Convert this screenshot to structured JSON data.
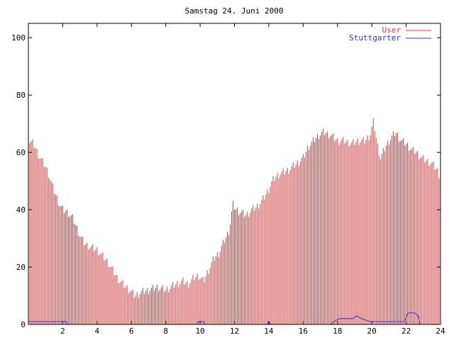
{
  "chart_data": {
    "type": "bar",
    "title": "Samstag 24. Juni 2000",
    "xlabel": "",
    "ylabel": "",
    "xlim": [
      0,
      24
    ],
    "ylim": [
      0,
      105
    ],
    "xticks": [
      2,
      4,
      6,
      8,
      10,
      12,
      14,
      16,
      18,
      20,
      22,
      24
    ],
    "yticks": [
      0,
      20,
      40,
      60,
      80,
      100
    ],
    "grid": false,
    "legend_placement": "top-right",
    "series": [
      {
        "name": "User",
        "color": "#d04040",
        "style": "impulses",
        "anchors": [
          [
            0.0,
            64
          ],
          [
            0.3,
            63
          ],
          [
            0.6,
            59
          ],
          [
            0.8,
            57
          ],
          [
            1.0,
            55
          ],
          [
            1.2,
            52
          ],
          [
            1.4,
            48
          ],
          [
            1.6,
            45
          ],
          [
            1.8,
            42
          ],
          [
            2.0,
            40
          ],
          [
            2.3,
            39
          ],
          [
            2.6,
            37
          ],
          [
            2.8,
            34
          ],
          [
            3.0,
            31
          ],
          [
            3.3,
            28
          ],
          [
            3.6,
            27
          ],
          [
            4.0,
            26
          ],
          [
            4.3,
            24
          ],
          [
            4.6,
            22
          ],
          [
            4.9,
            19
          ],
          [
            5.2,
            16
          ],
          [
            5.5,
            14
          ],
          [
            5.9,
            12
          ],
          [
            6.2,
            10
          ],
          [
            6.5,
            11
          ],
          [
            7.0,
            12
          ],
          [
            7.5,
            13
          ],
          [
            8.0,
            12
          ],
          [
            8.3,
            13
          ],
          [
            8.6,
            14
          ],
          [
            9.0,
            15
          ],
          [
            9.3,
            14
          ],
          [
            9.6,
            16
          ],
          [
            9.9,
            17
          ],
          [
            10.2,
            15
          ],
          [
            10.5,
            19
          ],
          [
            10.8,
            23
          ],
          [
            11.1,
            25
          ],
          [
            11.4,
            29
          ],
          [
            11.7,
            33
          ],
          [
            11.9,
            42
          ],
          [
            12.1,
            40
          ],
          [
            12.4,
            39
          ],
          [
            12.7,
            38
          ],
          [
            13.0,
            40
          ],
          [
            13.3,
            41
          ],
          [
            13.6,
            43
          ],
          [
            13.9,
            46
          ],
          [
            14.2,
            50
          ],
          [
            14.5,
            52
          ],
          [
            14.8,
            53
          ],
          [
            15.2,
            54
          ],
          [
            15.6,
            56
          ],
          [
            16.0,
            58
          ],
          [
            16.3,
            62
          ],
          [
            16.6,
            64
          ],
          [
            16.9,
            66
          ],
          [
            17.2,
            67
          ],
          [
            17.6,
            66
          ],
          [
            18.0,
            64
          ],
          [
            18.4,
            64
          ],
          [
            18.8,
            63
          ],
          [
            19.2,
            64
          ],
          [
            19.6,
            64
          ],
          [
            19.9,
            66
          ],
          [
            20.1,
            71
          ],
          [
            20.3,
            63
          ],
          [
            20.5,
            58
          ],
          [
            20.8,
            62
          ],
          [
            21.1,
            65
          ],
          [
            21.4,
            67
          ],
          [
            21.7,
            64
          ],
          [
            22.0,
            63
          ],
          [
            22.3,
            61
          ],
          [
            22.6,
            60
          ],
          [
            22.9,
            58
          ],
          [
            23.2,
            57
          ],
          [
            23.5,
            56
          ],
          [
            23.8,
            54
          ],
          [
            24.0,
            51
          ]
        ]
      },
      {
        "name": "Stuttgarter",
        "color": "#3030d0",
        "style": "line",
        "points": [
          [
            0.0,
            1
          ],
          [
            2.2,
            1
          ],
          [
            2.3,
            0
          ],
          [
            9.8,
            0
          ],
          [
            9.9,
            1
          ],
          [
            10.2,
            1
          ],
          [
            10.3,
            0
          ],
          [
            13.9,
            0
          ],
          [
            14.0,
            1
          ],
          [
            14.1,
            0
          ],
          [
            17.6,
            0
          ],
          [
            17.8,
            1
          ],
          [
            18.1,
            2
          ],
          [
            18.9,
            2
          ],
          [
            19.1,
            3
          ],
          [
            19.4,
            2
          ],
          [
            19.9,
            1
          ],
          [
            20.9,
            1
          ],
          [
            21.9,
            1
          ],
          [
            22.1,
            4
          ],
          [
            22.5,
            4
          ],
          [
            22.7,
            3
          ],
          [
            22.8,
            0
          ],
          [
            24.0,
            0
          ]
        ]
      }
    ]
  }
}
